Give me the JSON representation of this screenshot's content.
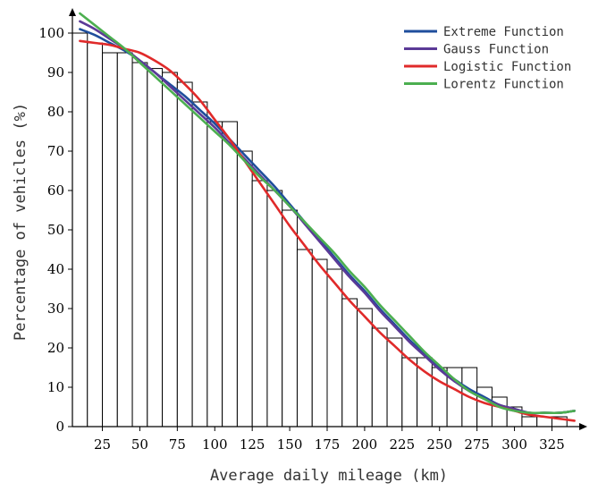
{
  "chart_data": {
    "type": "bar",
    "xlabel": "Average daily mileage (km)",
    "ylabel": "Percentage of vehicles (%)",
    "xlim": [
      5,
      345
    ],
    "ylim": [
      0,
      105
    ],
    "x_ticks": [
      25,
      50,
      75,
      100,
      125,
      150,
      175,
      200,
      225,
      250,
      275,
      300,
      325
    ],
    "y_ticks": [
      0,
      10,
      20,
      30,
      40,
      50,
      60,
      70,
      80,
      90,
      100
    ],
    "grid": false,
    "legend_position": "top-right",
    "bar_width": 10,
    "bars": {
      "x": [
        10,
        20,
        30,
        40,
        50,
        60,
        70,
        80,
        90,
        100,
        110,
        120,
        130,
        140,
        150,
        160,
        170,
        180,
        190,
        200,
        210,
        220,
        230,
        240,
        250,
        260,
        270,
        280,
        290,
        300,
        310,
        320,
        330
      ],
      "values": [
        100,
        97.5,
        95,
        95,
        92.5,
        91,
        90,
        87.5,
        82.5,
        77.5,
        77.5,
        70,
        62.5,
        60,
        55,
        45,
        42.5,
        40,
        32.5,
        30,
        25,
        22.5,
        17.5,
        17.5,
        15,
        15,
        15,
        10,
        7.5,
        5,
        2.5,
        2.5,
        2.5
      ]
    },
    "series": [
      {
        "name": "Extreme Function",
        "color": "#1f4e9c",
        "x": [
          10,
          20,
          30,
          40,
          50,
          60,
          70,
          80,
          90,
          100,
          110,
          120,
          130,
          140,
          150,
          160,
          170,
          180,
          190,
          200,
          210,
          220,
          230,
          240,
          250,
          260,
          270,
          280,
          290,
          300,
          310,
          320,
          330,
          340
        ],
        "values": [
          101,
          99.5,
          97.5,
          95.5,
          93,
          90,
          87,
          84,
          80.5,
          77,
          73,
          69,
          65,
          61,
          56.5,
          52,
          47.5,
          43,
          38.5,
          34.5,
          30,
          26,
          22,
          18.5,
          15,
          12,
          9.5,
          7.5,
          5.5,
          4.5,
          3.5,
          3.5,
          3.5,
          4
        ]
      },
      {
        "name": "Gauss Function",
        "color": "#5b3a97",
        "x": [
          10,
          20,
          30,
          40,
          50,
          60,
          70,
          80,
          90,
          100,
          110,
          120,
          130,
          140,
          150,
          160,
          170,
          180,
          190,
          200,
          210,
          220,
          230,
          240,
          250,
          260,
          270,
          280,
          290,
          300,
          310,
          320,
          330,
          340
        ],
        "values": [
          103,
          101,
          98.5,
          96,
          93,
          90,
          86.5,
          83,
          79.5,
          76,
          72,
          68,
          64,
          60,
          56,
          51.5,
          47,
          42.5,
          38,
          34,
          29.5,
          25.5,
          21.5,
          18,
          14.5,
          11.5,
          9,
          7,
          5.5,
          4.5,
          3.5,
          3.5,
          3.5,
          4
        ]
      },
      {
        "name": "Logistic Function",
        "color": "#e02a2a",
        "x": [
          10,
          20,
          30,
          40,
          50,
          60,
          70,
          80,
          90,
          100,
          110,
          120,
          130,
          140,
          150,
          160,
          170,
          180,
          190,
          200,
          210,
          220,
          230,
          240,
          250,
          260,
          270,
          280,
          290,
          300,
          310,
          320,
          330,
          340
        ],
        "values": [
          98,
          97.5,
          97,
          96,
          95,
          93,
          90.5,
          87,
          83,
          78,
          73,
          67.5,
          62,
          56.5,
          51,
          46,
          41,
          36.5,
          32,
          28,
          24,
          20.5,
          17,
          14,
          11.5,
          9.5,
          7.5,
          6,
          5,
          4,
          3,
          2.5,
          2,
          1.5
        ]
      },
      {
        "name": "Lorentz Function",
        "color": "#4caf50",
        "x": [
          10,
          20,
          30,
          40,
          50,
          60,
          70,
          80,
          90,
          100,
          110,
          120,
          130,
          140,
          150,
          160,
          170,
          180,
          190,
          200,
          210,
          220,
          230,
          240,
          250,
          260,
          270,
          280,
          290,
          300,
          310,
          320,
          330,
          340
        ],
        "values": [
          105,
          102,
          99,
          96,
          92.5,
          89,
          85.5,
          82,
          78.5,
          75,
          71.5,
          67.5,
          63.5,
          60,
          56,
          52,
          48,
          44,
          39.5,
          35.5,
          31,
          27,
          23,
          19,
          15.5,
          12,
          9,
          7,
          5,
          4,
          3.5,
          3.5,
          3.5,
          4
        ]
      }
    ]
  }
}
